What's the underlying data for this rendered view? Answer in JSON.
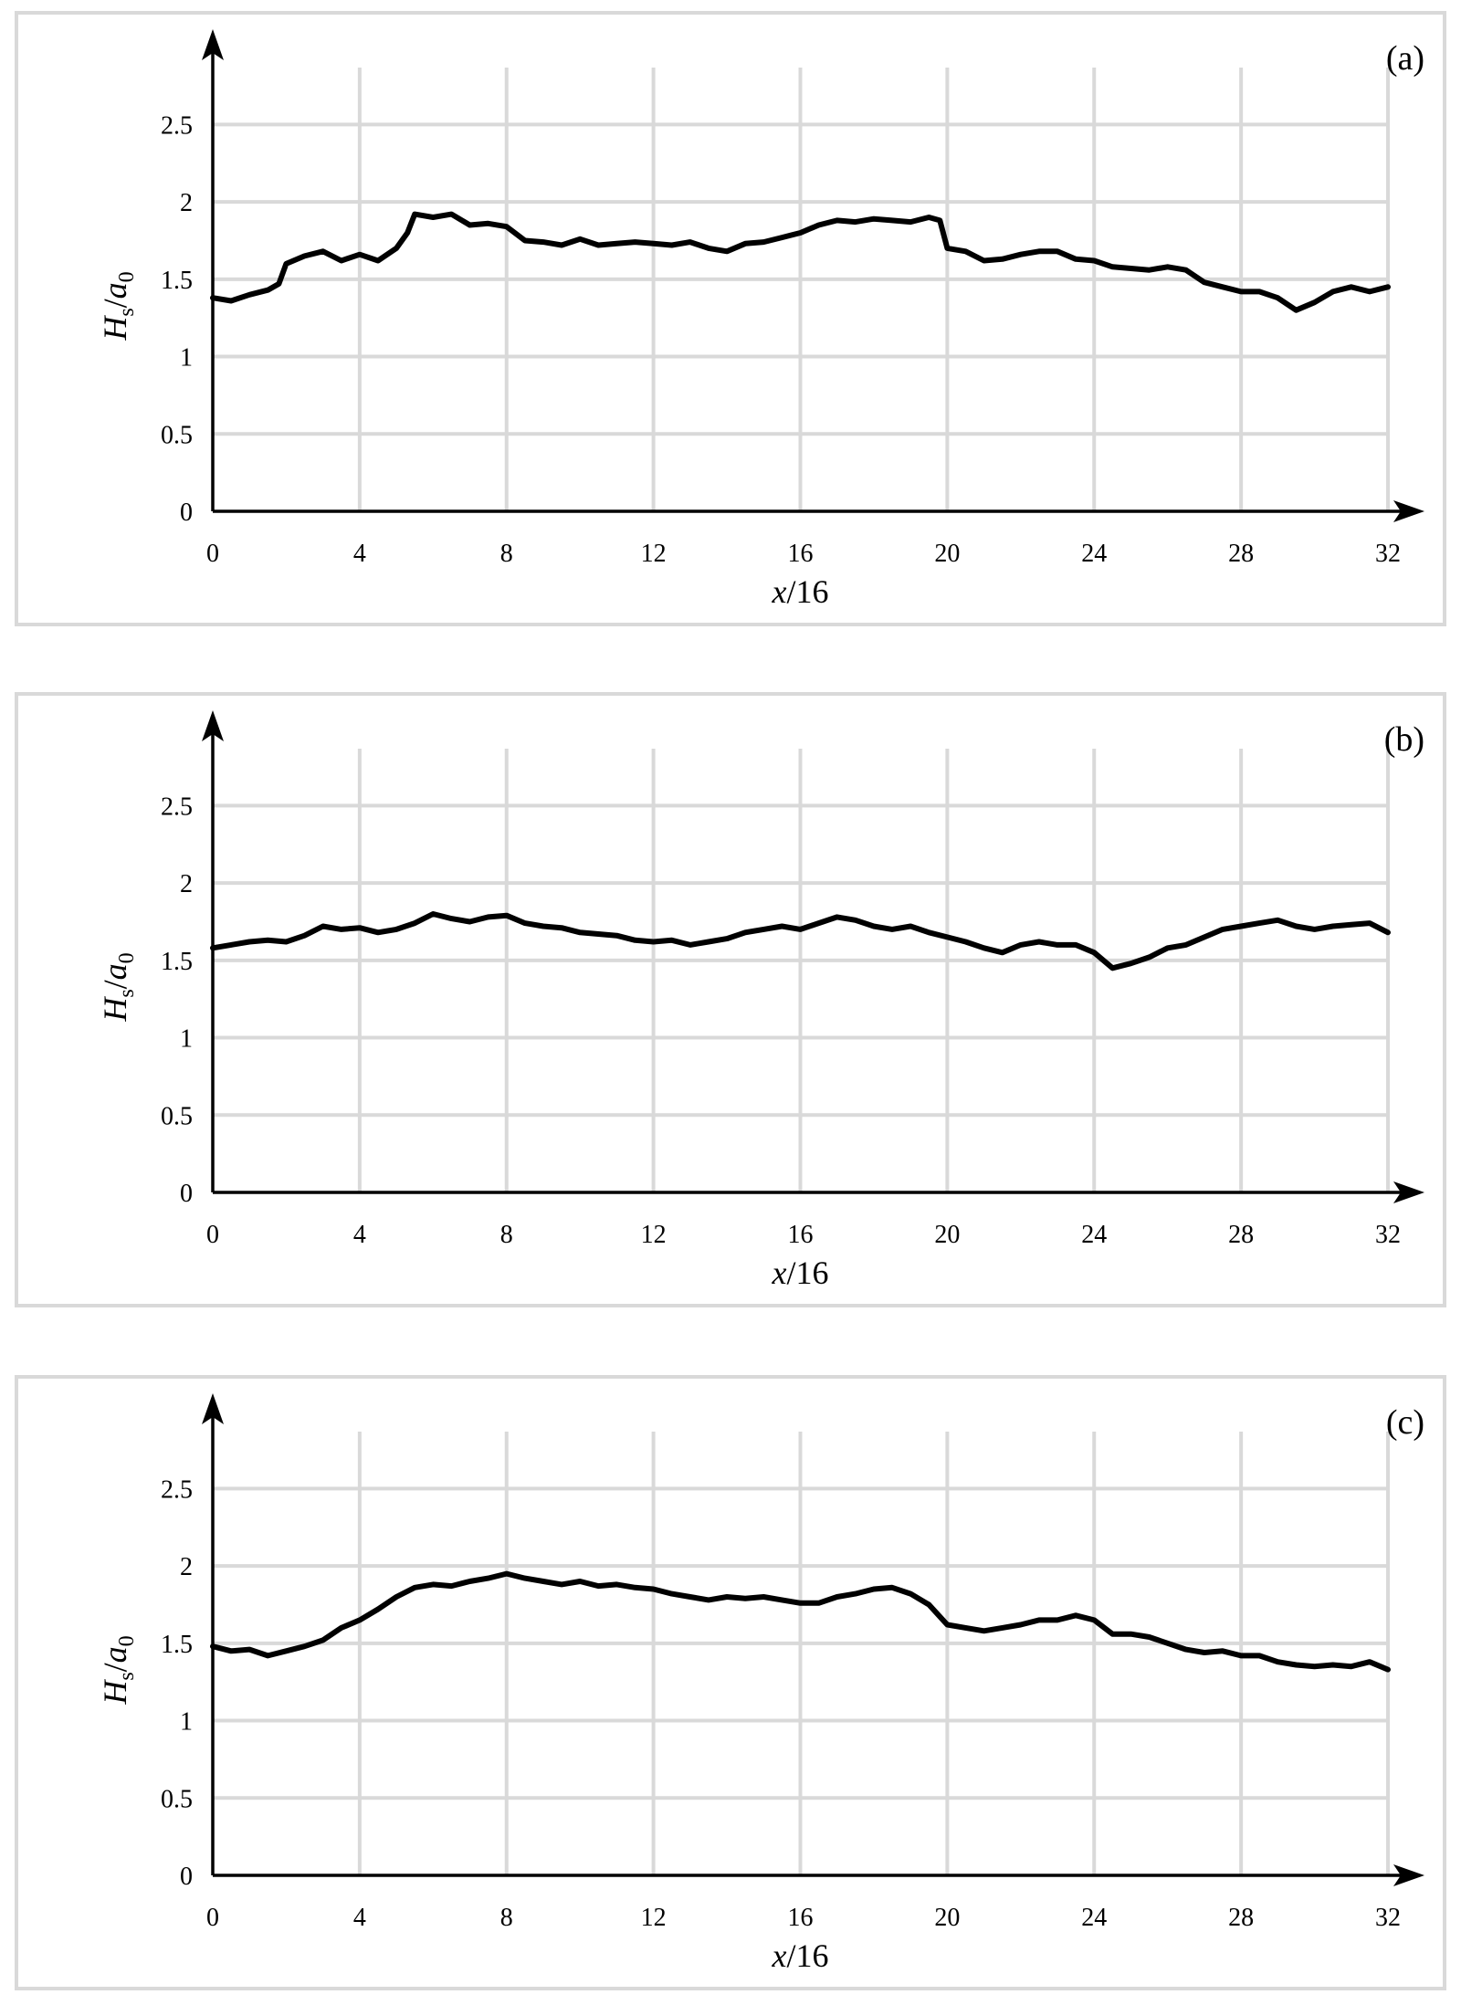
{
  "chart_data": [
    {
      "type": "line",
      "panel_label": "(a)",
      "xlabel_italic": "x",
      "xlabel_rest": "/16",
      "ylabel_main": "H",
      "ylabel_sub": "s",
      "ylabel_slash": "/",
      "ylabel_main2": "a",
      "ylabel_sub2": "0",
      "xlim": [
        0,
        32
      ],
      "ylim": [
        0,
        2.75
      ],
      "xticks": [
        "0",
        "4",
        "8",
        "12",
        "16",
        "20",
        "24",
        "28",
        "32"
      ],
      "yticks": [
        "0",
        "0.5",
        "1",
        "1.5",
        "2",
        "2.5"
      ],
      "grid": true,
      "series": [
        {
          "color": "#000000",
          "x": [
            0,
            0.5,
            1,
            1.5,
            1.8,
            2,
            2.5,
            3,
            3.5,
            4,
            4.5,
            5,
            5.3,
            5.5,
            6,
            6.5,
            7,
            7.5,
            8,
            8.5,
            9,
            9.5,
            10,
            10.5,
            11,
            11.5,
            12,
            12.5,
            13,
            13.5,
            14,
            14.5,
            15,
            15.5,
            16,
            16.5,
            17,
            17.5,
            18,
            18.5,
            19,
            19.5,
            19.8,
            20,
            20.5,
            21,
            21.5,
            22,
            22.5,
            23,
            23.5,
            24,
            24.5,
            25,
            25.5,
            26,
            26.5,
            27,
            27.5,
            28,
            28.5,
            29,
            29.5,
            30,
            30.5,
            31,
            31.5,
            32
          ],
          "y": [
            1.38,
            1.36,
            1.4,
            1.43,
            1.47,
            1.6,
            1.65,
            1.68,
            1.62,
            1.66,
            1.62,
            1.7,
            1.8,
            1.92,
            1.9,
            1.92,
            1.85,
            1.86,
            1.84,
            1.75,
            1.74,
            1.72,
            1.76,
            1.72,
            1.73,
            1.74,
            1.73,
            1.72,
            1.74,
            1.7,
            1.68,
            1.73,
            1.74,
            1.77,
            1.8,
            1.85,
            1.88,
            1.87,
            1.89,
            1.88,
            1.87,
            1.9,
            1.88,
            1.7,
            1.68,
            1.62,
            1.63,
            1.66,
            1.68,
            1.68,
            1.63,
            1.62,
            1.58,
            1.57,
            1.56,
            1.58,
            1.56,
            1.48,
            1.45,
            1.42,
            1.42,
            1.38,
            1.3,
            1.35,
            1.42,
            1.45,
            1.42,
            1.45
          ]
        }
      ]
    },
    {
      "type": "line",
      "panel_label": "(b)",
      "xlabel_italic": "x",
      "xlabel_rest": "/16",
      "ylabel_main": "H",
      "ylabel_sub": "s",
      "ylabel_slash": "/",
      "ylabel_main2": "a",
      "ylabel_sub2": "0",
      "xlim": [
        0,
        32
      ],
      "ylim": [
        0,
        2.75
      ],
      "xticks": [
        "0",
        "4",
        "8",
        "12",
        "16",
        "20",
        "24",
        "28",
        "32"
      ],
      "yticks": [
        "0",
        "0.5",
        "1",
        "1.5",
        "2",
        "2.5"
      ],
      "grid": true,
      "series": [
        {
          "color": "#000000",
          "x": [
            0,
            0.5,
            1,
            1.5,
            2,
            2.5,
            3,
            3.5,
            4,
            4.5,
            5,
            5.5,
            6,
            6.5,
            7,
            7.5,
            8,
            8.5,
            9,
            9.5,
            10,
            10.5,
            11,
            11.5,
            12,
            12.5,
            13,
            13.5,
            14,
            14.5,
            15,
            15.5,
            16,
            16.5,
            17,
            17.5,
            18,
            18.5,
            19,
            19.5,
            20,
            20.5,
            21,
            21.5,
            22,
            22.5,
            23,
            23.5,
            24,
            24.5,
            25,
            25.5,
            26,
            26.5,
            27,
            27.5,
            28,
            28.5,
            29,
            29.5,
            30,
            30.5,
            31,
            31.5,
            32
          ],
          "y": [
            1.58,
            1.6,
            1.62,
            1.63,
            1.62,
            1.66,
            1.72,
            1.7,
            1.71,
            1.68,
            1.7,
            1.74,
            1.8,
            1.77,
            1.75,
            1.78,
            1.79,
            1.74,
            1.72,
            1.71,
            1.68,
            1.67,
            1.66,
            1.63,
            1.62,
            1.63,
            1.6,
            1.62,
            1.64,
            1.68,
            1.7,
            1.72,
            1.7,
            1.74,
            1.78,
            1.76,
            1.72,
            1.7,
            1.72,
            1.68,
            1.65,
            1.62,
            1.58,
            1.55,
            1.6,
            1.62,
            1.6,
            1.6,
            1.55,
            1.45,
            1.48,
            1.52,
            1.58,
            1.6,
            1.65,
            1.7,
            1.72,
            1.74,
            1.76,
            1.72,
            1.7,
            1.72,
            1.73,
            1.74,
            1.68
          ]
        }
      ]
    },
    {
      "type": "line",
      "panel_label": "(c)",
      "xlabel_italic": "x",
      "xlabel_rest": "/16",
      "ylabel_main": "H",
      "ylabel_sub": "s",
      "ylabel_slash": "/",
      "ylabel_main2": "a",
      "ylabel_sub2": "0",
      "xlim": [
        0,
        32
      ],
      "ylim": [
        0,
        2.75
      ],
      "xticks": [
        "0",
        "4",
        "8",
        "12",
        "16",
        "20",
        "24",
        "28",
        "32"
      ],
      "yticks": [
        "0",
        "0.5",
        "1",
        "1.5",
        "2",
        "2.5"
      ],
      "grid": true,
      "series": [
        {
          "color": "#000000",
          "x": [
            0,
            0.5,
            1,
            1.5,
            2,
            2.5,
            3,
            3.5,
            4,
            4.5,
            5,
            5.5,
            6,
            6.5,
            7,
            7.5,
            8,
            8.5,
            9,
            9.5,
            10,
            10.5,
            11,
            11.5,
            12,
            12.5,
            13,
            13.5,
            14,
            14.5,
            15,
            15.5,
            16,
            16.5,
            17,
            17.5,
            18,
            18.5,
            19,
            19.5,
            20,
            20.5,
            21,
            21.5,
            22,
            22.5,
            23,
            23.5,
            24,
            24.5,
            25,
            25.5,
            26,
            26.5,
            27,
            27.5,
            28,
            28.5,
            29,
            29.5,
            30,
            30.5,
            31,
            31.5,
            32
          ],
          "y": [
            1.48,
            1.45,
            1.46,
            1.42,
            1.45,
            1.48,
            1.52,
            1.6,
            1.65,
            1.72,
            1.8,
            1.86,
            1.88,
            1.87,
            1.9,
            1.92,
            1.95,
            1.92,
            1.9,
            1.88,
            1.9,
            1.87,
            1.88,
            1.86,
            1.85,
            1.82,
            1.8,
            1.78,
            1.8,
            1.79,
            1.8,
            1.78,
            1.76,
            1.76,
            1.8,
            1.82,
            1.85,
            1.86,
            1.82,
            1.75,
            1.62,
            1.6,
            1.58,
            1.6,
            1.62,
            1.65,
            1.65,
            1.68,
            1.65,
            1.56,
            1.56,
            1.54,
            1.5,
            1.46,
            1.44,
            1.45,
            1.42,
            1.42,
            1.38,
            1.36,
            1.35,
            1.36,
            1.35,
            1.38,
            1.33
          ]
        }
      ]
    }
  ]
}
